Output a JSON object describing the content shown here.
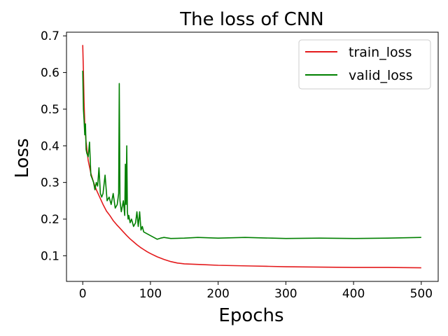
{
  "chart_data": {
    "type": "line",
    "title": "The loss of CNN",
    "xlabel": "Epochs",
    "ylabel": "Loss",
    "xlim": [
      -24,
      525
    ],
    "ylim": [
      0.03,
      0.71
    ],
    "xticks": [
      0,
      100,
      200,
      300,
      400,
      500
    ],
    "yticks": [
      0.1,
      0.2,
      0.3,
      0.4,
      0.5,
      0.6,
      0.7
    ],
    "grid": false,
    "legend": "top-right",
    "series": [
      {
        "name": "train_loss",
        "color": "#e41a1c",
        "x": [
          0,
          1,
          2,
          3,
          5,
          8,
          12,
          16,
          20,
          25,
          30,
          35,
          40,
          45,
          50,
          55,
          60,
          65,
          70,
          75,
          80,
          85,
          90,
          95,
          100,
          110,
          120,
          130,
          140,
          150,
          175,
          200,
          225,
          250,
          275,
          300,
          350,
          400,
          450,
          500
        ],
        "y": [
          0.675,
          0.6,
          0.52,
          0.46,
          0.41,
          0.36,
          0.325,
          0.3,
          0.28,
          0.26,
          0.24,
          0.222,
          0.21,
          0.196,
          0.185,
          0.175,
          0.165,
          0.155,
          0.146,
          0.138,
          0.13,
          0.123,
          0.117,
          0.111,
          0.106,
          0.097,
          0.09,
          0.084,
          0.08,
          0.078,
          0.076,
          0.074,
          0.073,
          0.072,
          0.071,
          0.07,
          0.069,
          0.068,
          0.068,
          0.067
        ]
      },
      {
        "name": "valid_loss",
        "color": "#008000",
        "x": [
          0,
          1,
          2,
          3,
          4,
          5,
          6,
          8,
          10,
          12,
          14,
          16,
          18,
          20,
          22,
          24,
          26,
          28,
          30,
          33,
          36,
          39,
          42,
          45,
          48,
          51,
          53,
          54,
          55,
          57,
          60,
          62,
          63,
          64,
          65,
          66,
          67,
          68,
          70,
          72,
          75,
          78,
          80,
          82,
          84,
          86,
          88,
          90,
          95,
          100,
          105,
          110,
          115,
          120,
          130,
          150,
          170,
          200,
          240,
          280,
          300,
          350,
          400,
          450,
          500
        ],
        "y": [
          0.605,
          0.5,
          0.47,
          0.43,
          0.46,
          0.39,
          0.38,
          0.37,
          0.41,
          0.32,
          0.31,
          0.3,
          0.28,
          0.3,
          0.29,
          0.34,
          0.27,
          0.26,
          0.27,
          0.32,
          0.25,
          0.26,
          0.24,
          0.27,
          0.23,
          0.24,
          0.27,
          0.57,
          0.25,
          0.22,
          0.25,
          0.21,
          0.35,
          0.24,
          0.4,
          0.22,
          0.2,
          0.21,
          0.19,
          0.2,
          0.18,
          0.19,
          0.22,
          0.18,
          0.22,
          0.17,
          0.18,
          0.165,
          0.16,
          0.155,
          0.15,
          0.145,
          0.148,
          0.15,
          0.147,
          0.148,
          0.15,
          0.148,
          0.15,
          0.148,
          0.147,
          0.148,
          0.147,
          0.148,
          0.15
        ]
      }
    ]
  }
}
